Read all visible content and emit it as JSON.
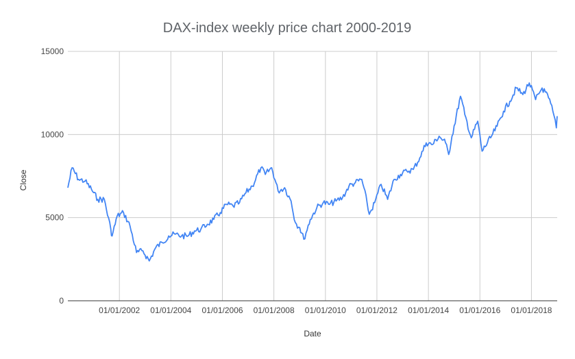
{
  "chart_data": {
    "type": "line",
    "title": "DAX-index weekly price chart 2000-2019",
    "xlabel": "Date",
    "ylabel": "Close",
    "xlim": [
      "2000-01-01",
      "2019-01-01"
    ],
    "ylim": [
      0,
      15000
    ],
    "y_ticks": [
      0,
      5000,
      10000,
      15000
    ],
    "x_ticks": [
      "01/01/2002",
      "01/01/2004",
      "01/01/2006",
      "01/01/2008",
      "01/01/2010",
      "01/01/2012",
      "01/01/2014",
      "01/01/2016",
      "01/01/2018"
    ],
    "grid": true,
    "legend": "none",
    "line_color": "#4285f4",
    "series": [
      {
        "points": [
          [
            "2000-01-01",
            6800
          ],
          [
            "2000-03-01",
            8000
          ],
          [
            "2000-06-01",
            7300
          ],
          [
            "2000-09-01",
            7200
          ],
          [
            "2000-12-01",
            6700
          ],
          [
            "2001-03-01",
            6100
          ],
          [
            "2001-06-01",
            6100
          ],
          [
            "2001-09-01",
            4300
          ],
          [
            "2001-09-20",
            3900
          ],
          [
            "2001-12-01",
            5100
          ],
          [
            "2002-03-01",
            5300
          ],
          [
            "2002-06-01",
            4500
          ],
          [
            "2002-09-01",
            2900
          ],
          [
            "2002-12-01",
            3000
          ],
          [
            "2003-03-01",
            2400
          ],
          [
            "2003-06-01",
            3200
          ],
          [
            "2003-09-01",
            3500
          ],
          [
            "2003-12-01",
            3900
          ],
          [
            "2004-03-01",
            4000
          ],
          [
            "2004-06-01",
            3900
          ],
          [
            "2004-09-01",
            3900
          ],
          [
            "2004-12-01",
            4200
          ],
          [
            "2005-03-01",
            4300
          ],
          [
            "2005-06-01",
            4600
          ],
          [
            "2005-09-01",
            4900
          ],
          [
            "2005-12-01",
            5300
          ],
          [
            "2006-03-01",
            5800
          ],
          [
            "2006-06-01",
            5700
          ],
          [
            "2006-09-01",
            5900
          ],
          [
            "2006-12-01",
            6500
          ],
          [
            "2007-03-01",
            6900
          ],
          [
            "2007-07-01",
            8000
          ],
          [
            "2007-09-01",
            7600
          ],
          [
            "2007-12-01",
            8000
          ],
          [
            "2008-03-01",
            6600
          ],
          [
            "2008-06-01",
            6800
          ],
          [
            "2008-09-01",
            6000
          ],
          [
            "2008-11-01",
            4700
          ],
          [
            "2009-01-01",
            4400
          ],
          [
            "2009-03-01",
            3700
          ],
          [
            "2009-06-01",
            4900
          ],
          [
            "2009-09-01",
            5600
          ],
          [
            "2009-12-01",
            5900
          ],
          [
            "2010-03-01",
            5800
          ],
          [
            "2010-06-01",
            6000
          ],
          [
            "2010-09-01",
            6200
          ],
          [
            "2010-12-01",
            6900
          ],
          [
            "2011-03-01",
            7100
          ],
          [
            "2011-06-01",
            7300
          ],
          [
            "2011-08-15",
            5900
          ],
          [
            "2011-09-15",
            5200
          ],
          [
            "2011-12-01",
            5900
          ],
          [
            "2012-03-01",
            7000
          ],
          [
            "2012-06-01",
            6100
          ],
          [
            "2012-09-01",
            7300
          ],
          [
            "2012-12-01",
            7600
          ],
          [
            "2013-03-01",
            7800
          ],
          [
            "2013-06-01",
            7900
          ],
          [
            "2013-09-01",
            8600
          ],
          [
            "2013-12-01",
            9500
          ],
          [
            "2014-03-01",
            9400
          ],
          [
            "2014-06-01",
            9900
          ],
          [
            "2014-09-01",
            9500
          ],
          [
            "2014-10-15",
            8800
          ],
          [
            "2014-12-01",
            9900
          ],
          [
            "2015-04-01",
            12300
          ],
          [
            "2015-06-01",
            11200
          ],
          [
            "2015-09-01",
            9800
          ],
          [
            "2015-12-01",
            10800
          ],
          [
            "2016-02-01",
            9000
          ],
          [
            "2016-06-01",
            9800
          ],
          [
            "2016-09-01",
            10500
          ],
          [
            "2016-12-01",
            11400
          ],
          [
            "2017-03-01",
            12000
          ],
          [
            "2017-06-01",
            12800
          ],
          [
            "2017-09-01",
            12400
          ],
          [
            "2017-12-01",
            13100
          ],
          [
            "2018-03-01",
            12100
          ],
          [
            "2018-06-01",
            12800
          ],
          [
            "2018-09-01",
            12200
          ],
          [
            "2018-11-01",
            11400
          ],
          [
            "2018-12-20",
            10400
          ],
          [
            "2019-01-01",
            11100
          ]
        ]
      }
    ]
  }
}
